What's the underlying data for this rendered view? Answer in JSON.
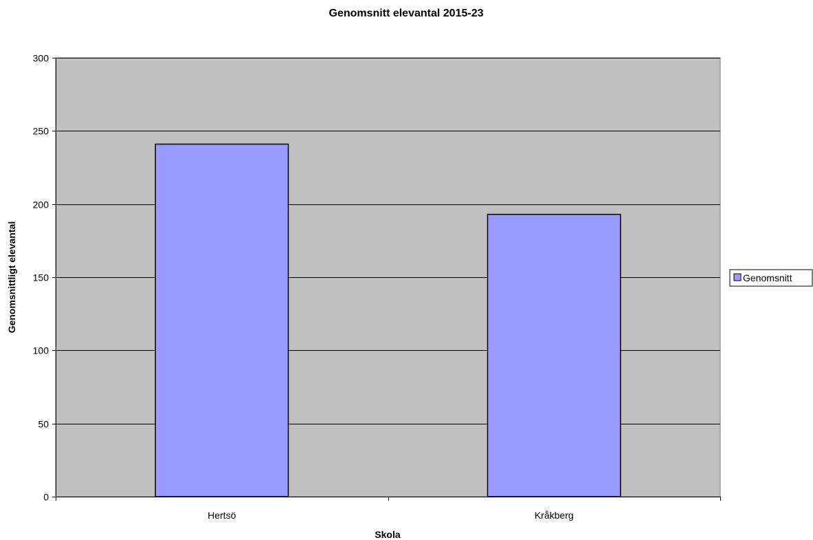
{
  "chart_data": {
    "type": "bar",
    "title": "Genomsnitt elevantal 2015-23",
    "xlabel": "Skola",
    "ylabel": "Genomsnittligt elevantal",
    "categories": [
      "Hertsö",
      "Kråkberg"
    ],
    "series": [
      {
        "name": "Genomsnitt",
        "values": [
          241,
          193
        ]
      }
    ],
    "ylim": [
      0,
      300
    ],
    "yticks": [
      0,
      50,
      100,
      150,
      200,
      250,
      300
    ],
    "grid": true,
    "legend_position": "right",
    "colors": {
      "plot_background": "#c0c0c0",
      "bar_fill": "#9999ff",
      "bar_stroke": "#000000",
      "gridline": "#000000"
    }
  }
}
